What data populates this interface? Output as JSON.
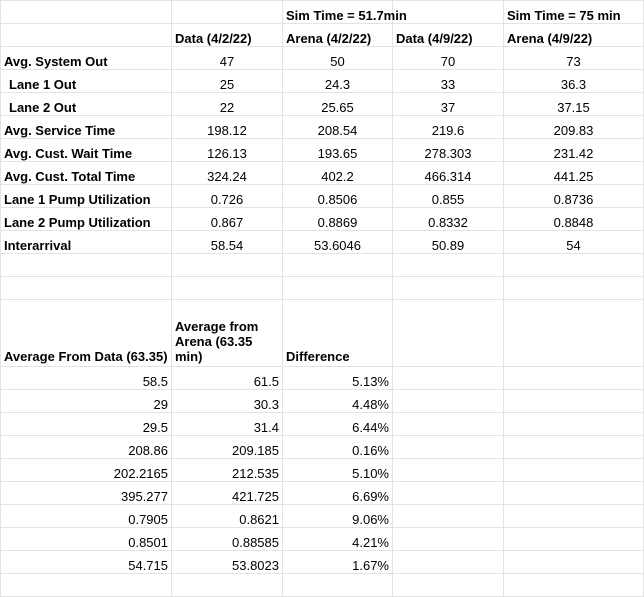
{
  "sheet": {
    "header_row1": {
      "sim_a": "Sim Time = 51.7min",
      "sim_b": "Sim Time = 75 min"
    },
    "header_row2": {
      "data_1": "Data (4/2/22)",
      "arena_1": "Arena (4/2/22)",
      "data_2": "Data (4/9/22)",
      "arena_2": "Arena (4/9/22)"
    },
    "metrics": [
      {
        "label": "Avg. System Out",
        "data_1": "47",
        "arena_1": "50",
        "data_2": "70",
        "arena_2": "73"
      },
      {
        "label": "Lane 1 Out",
        "data_1": "25",
        "arena_1": "24.3",
        "data_2": "33",
        "arena_2": "36.3"
      },
      {
        "label": "Lane 2 Out",
        "data_1": "22",
        "arena_1": "25.65",
        "data_2": "37",
        "arena_2": "37.15"
      },
      {
        "label": "Avg. Service Time",
        "data_1": "198.12",
        "arena_1": "208.54",
        "data_2": "219.6",
        "arena_2": "209.83"
      },
      {
        "label": "Avg. Cust. Wait Time",
        "data_1": "126.13",
        "arena_1": "193.65",
        "data_2": "278.303",
        "arena_2": "231.42"
      },
      {
        "label": "Avg. Cust. Total Time",
        "data_1": "324.24",
        "arena_1": "402.2",
        "data_2": "466.314",
        "arena_2": "441.25"
      },
      {
        "label": "Lane 1 Pump Utilization",
        "data_1": "0.726",
        "arena_1": "0.8506",
        "data_2": "0.855",
        "arena_2": "0.8736"
      },
      {
        "label": "Lane 2 Pump Utilization",
        "data_1": "0.867",
        "arena_1": "0.8869",
        "data_2": "0.8332",
        "arena_2": "0.8848"
      },
      {
        "label": "Interarrival",
        "data_1": "58.54",
        "arena_1": "53.6046",
        "data_2": "50.89",
        "arena_2": "54"
      }
    ],
    "summary_header": {
      "avg_data": "Average From Data (63.35)",
      "avg_arena": "Average from Arena (63.35 min)",
      "difference": "Difference"
    },
    "summary_rows": [
      {
        "avg_data": "58.5",
        "avg_arena": "61.5",
        "difference": "5.13%"
      },
      {
        "avg_data": "29",
        "avg_arena": "30.3",
        "difference": "4.48%"
      },
      {
        "avg_data": "29.5",
        "avg_arena": "31.4",
        "difference": "6.44%"
      },
      {
        "avg_data": "208.86",
        "avg_arena": "209.185",
        "difference": "0.16%"
      },
      {
        "avg_data": "202.2165",
        "avg_arena": "212.535",
        "difference": "5.10%"
      },
      {
        "avg_data": "395.277",
        "avg_arena": "421.725",
        "difference": "6.69%"
      },
      {
        "avg_data": "0.7905",
        "avg_arena": "0.8621",
        "difference": "9.06%"
      },
      {
        "avg_data": "0.8501",
        "avg_arena": "0.88585",
        "difference": "4.21%"
      },
      {
        "avg_data": "54.715",
        "avg_arena": "53.8023",
        "difference": "1.67%"
      }
    ]
  }
}
